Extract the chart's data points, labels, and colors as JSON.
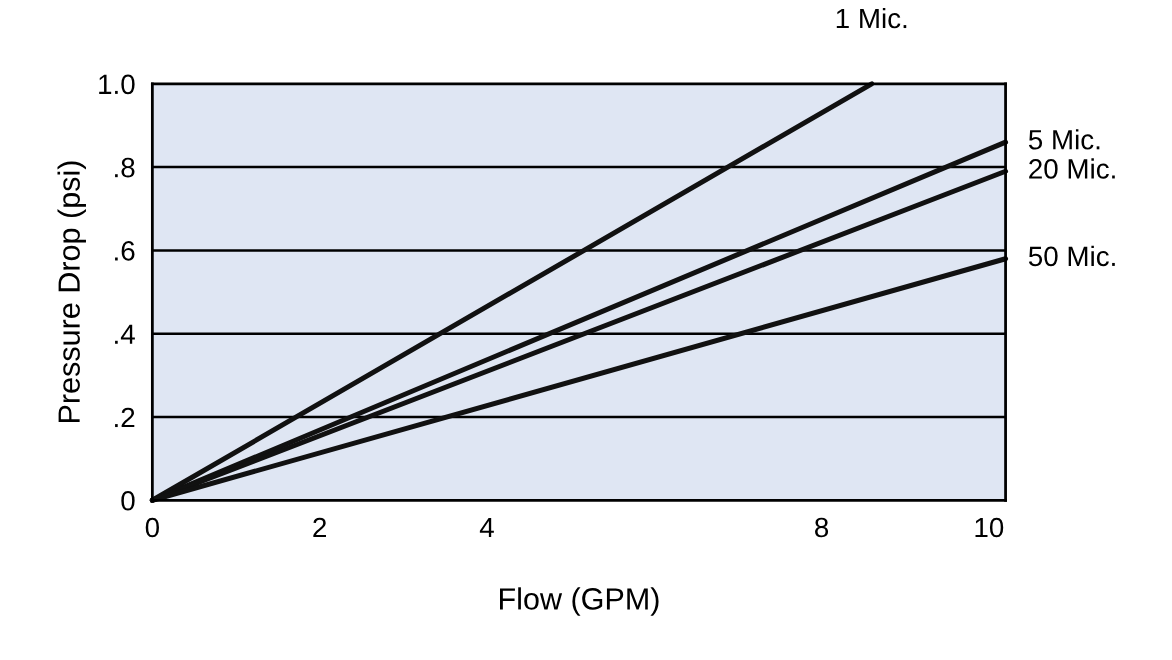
{
  "chart_data": {
    "type": "line",
    "xlabel": "Flow (GPM)",
    "ylabel": "Pressure Drop (psi)",
    "xlim": [
      0,
      10.2
    ],
    "ylim": [
      0,
      1.0
    ],
    "xticks": [
      0,
      2,
      4,
      8,
      10
    ],
    "yticks": [
      0,
      {
        "value": 0.2,
        "label": ".2"
      },
      {
        "value": 0.4,
        "label": ".4"
      },
      {
        "value": 0.6,
        "label": ".6"
      },
      {
        "value": 0.8,
        "label": ".8"
      },
      {
        "value": 1.0,
        "label": "1.0"
      }
    ],
    "grid": "y",
    "legend": false,
    "marker": "none",
    "line_style": "solid",
    "series": [
      {
        "name": "1 Mic.",
        "color": "#111111",
        "x": [
          0,
          8.6
        ],
        "values": [
          0,
          1.0
        ]
      },
      {
        "name": "5 Mic.",
        "color": "#111111",
        "x": [
          0,
          10.2
        ],
        "values": [
          0,
          0.86
        ]
      },
      {
        "name": "20 Mic.",
        "color": "#111111",
        "x": [
          0,
          10.2
        ],
        "values": [
          0,
          0.79
        ]
      },
      {
        "name": "50 Mic.",
        "color": "#111111",
        "x": [
          0,
          10.2
        ],
        "values": [
          0,
          0.58
        ]
      }
    ]
  }
}
